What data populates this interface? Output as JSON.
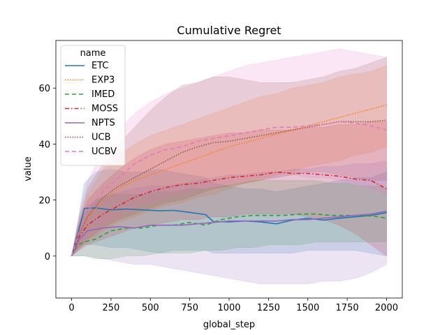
{
  "chart_data": {
    "type": "line",
    "title": "Cumulative Regret",
    "xlabel": "global_step",
    "ylabel": "value",
    "xlim": [
      -100,
      2100
    ],
    "ylim": [
      -15,
      77
    ],
    "xticks": [
      0,
      250,
      500,
      750,
      1000,
      1250,
      1500,
      1750,
      2000
    ],
    "yticks": [
      0,
      20,
      40,
      60
    ],
    "grid": false,
    "legend": {
      "title": "name",
      "placement": "top-left"
    },
    "series": [
      {
        "name": "ETC",
        "color": "#1f77b4",
        "dash": "solid",
        "x": [
          0,
          40,
          80,
          150,
          250,
          350,
          450,
          550,
          650,
          750,
          850,
          900,
          1000,
          1100,
          1200,
          1300,
          1400,
          1500,
          1600,
          1700,
          1800,
          1900,
          2000
        ],
        "y": [
          0,
          8,
          17,
          17.2,
          16.5,
          16.8,
          16.5,
          16.2,
          16.3,
          15.6,
          14.8,
          12.3,
          12.2,
          12.5,
          12.2,
          11.5,
          12.8,
          13.5,
          12.8,
          13.5,
          14,
          14.5,
          15.5
        ],
        "lower": [
          0,
          2,
          4,
          4,
          3,
          3,
          2,
          1,
          2,
          2,
          2,
          1,
          1,
          1,
          1,
          1,
          1,
          2,
          2,
          2,
          2,
          1,
          0
        ],
        "upper": [
          0,
          12,
          26,
          30,
          31,
          30,
          30,
          31,
          30,
          29,
          28,
          26,
          25,
          24,
          24,
          23,
          24,
          25,
          26,
          27,
          28,
          28,
          30
        ]
      },
      {
        "name": "EXP3",
        "color": "#ff7f0e",
        "dash": "dotted",
        "x": [
          0,
          50,
          100,
          200,
          300,
          400,
          500,
          600,
          700,
          800,
          900,
          1000,
          1100,
          1200,
          1300,
          1400,
          1500,
          1600,
          1700,
          1800,
          1900,
          2000
        ],
        "y": [
          0,
          8,
          13,
          20,
          24,
          27,
          29,
          31,
          33,
          35,
          37,
          39,
          40.5,
          42,
          43.5,
          45,
          46.5,
          48,
          49.5,
          51,
          52.5,
          54
        ],
        "lower": [
          0,
          3,
          5,
          9,
          12,
          14,
          16,
          18,
          19,
          21,
          22,
          24,
          26,
          27,
          29,
          30,
          32,
          33,
          34,
          36,
          37,
          39
        ],
        "upper": [
          0,
          14,
          22,
          31,
          36,
          40,
          43,
          45,
          47,
          49,
          51,
          53,
          55,
          57,
          58,
          60,
          61,
          62,
          64,
          65,
          66,
          68
        ]
      },
      {
        "name": "IMED",
        "color": "#2ca02c",
        "dash": "dashed",
        "x": [
          0,
          40,
          80,
          150,
          250,
          350,
          450,
          550,
          650,
          750,
          850,
          950,
          1050,
          1150,
          1250,
          1350,
          1450,
          1550,
          1650,
          1750,
          1850,
          1950,
          2000
        ],
        "y": [
          0,
          4,
          5,
          6,
          9,
          10,
          10,
          11,
          11,
          12,
          11,
          13,
          14,
          14.5,
          14.5,
          14.5,
          15,
          15,
          14.5,
          14.5,
          14.5,
          14,
          13.5
        ],
        "lower": [
          0,
          0,
          0,
          -1,
          -1,
          0,
          0,
          1,
          1,
          1,
          2,
          2,
          3,
          3,
          4,
          4,
          4,
          5,
          5,
          5,
          5,
          5,
          5
        ],
        "upper": [
          0,
          10,
          15,
          20,
          22,
          22,
          22,
          23,
          23,
          24,
          24,
          25,
          26,
          27,
          27,
          27,
          27,
          27,
          26,
          26,
          25,
          25,
          24
        ]
      },
      {
        "name": "MOSS",
        "color": "#d62728",
        "dash": "dashdot",
        "x": [
          0,
          50,
          100,
          200,
          300,
          400,
          500,
          600,
          700,
          800,
          900,
          1000,
          1100,
          1200,
          1300,
          1400,
          1500,
          1600,
          1700,
          1800,
          1900,
          2000
        ],
        "y": [
          0,
          7,
          11,
          15,
          18,
          21,
          23,
          24.5,
          25.5,
          26,
          27,
          28,
          28.5,
          29,
          30,
          29.5,
          29.5,
          29,
          28.5,
          27.5,
          27,
          24
        ],
        "lower": [
          0,
          2,
          4,
          6,
          8,
          10,
          11,
          12,
          13,
          13,
          14,
          14,
          15,
          15,
          15,
          15,
          14,
          13,
          11,
          8,
          4,
          0
        ],
        "upper": [
          0,
          12,
          20,
          26,
          31,
          35,
          38,
          40,
          41,
          42,
          43,
          44,
          44,
          45,
          45,
          45,
          46,
          46,
          47,
          47,
          48,
          48
        ]
      },
      {
        "name": "NPTS",
        "color": "#9467bd",
        "dash": "solid",
        "x": [
          0,
          50,
          100,
          200,
          300,
          400,
          500,
          600,
          700,
          800,
          900,
          1000,
          1100,
          1200,
          1300,
          1400,
          1500,
          1600,
          1700,
          1800,
          1900,
          2000
        ],
        "y": [
          0,
          6,
          9,
          10,
          10.5,
          10,
          11,
          11,
          11,
          11.5,
          12,
          12.5,
          12.5,
          12.5,
          12.5,
          13,
          13,
          13.5,
          14,
          14.5,
          15,
          16
        ],
        "lower": [
          0,
          0,
          0,
          -1,
          -2,
          -3,
          -3,
          -4,
          -5,
          -6,
          -7,
          -8,
          -9,
          -10,
          -10,
          -10,
          -10,
          -9,
          -9,
          -8,
          -6,
          -3
        ],
        "upper": [
          0,
          12,
          18,
          21,
          23,
          24,
          25,
          25,
          26,
          27,
          28,
          29,
          29,
          30,
          30,
          31,
          31,
          32,
          32,
          33,
          33,
          34
        ]
      },
      {
        "name": "UCB",
        "color": "#8c564b",
        "dash": "dotted",
        "x": [
          0,
          50,
          100,
          200,
          300,
          400,
          500,
          600,
          700,
          800,
          900,
          1000,
          1100,
          1200,
          1300,
          1400,
          1500,
          1600,
          1700,
          1800,
          1900,
          2000
        ],
        "y": [
          0,
          8,
          14,
          21,
          25,
          28,
          31,
          34,
          37,
          39,
          40.5,
          41,
          42,
          43,
          44,
          45,
          46,
          47,
          48,
          48,
          48,
          48.5
        ],
        "lower": [
          0,
          3,
          6,
          10,
          13,
          15,
          17,
          19,
          20,
          22,
          24,
          25,
          26,
          27,
          28,
          29,
          30,
          30,
          29,
          28,
          27,
          27
        ],
        "upper": [
          0,
          14,
          24,
          33,
          40,
          46,
          52,
          57,
          61,
          62,
          64,
          64,
          63,
          62,
          62,
          62,
          63,
          64,
          66,
          67,
          69,
          71
        ]
      },
      {
        "name": "UCBV",
        "color": "#e377c2",
        "dash": "dashed",
        "x": [
          0,
          50,
          100,
          200,
          300,
          400,
          500,
          600,
          700,
          800,
          900,
          1000,
          1100,
          1200,
          1300,
          1400,
          1500,
          1600,
          1700,
          1800,
          1900,
          2000
        ],
        "y": [
          0,
          9,
          16,
          23,
          28,
          33,
          36,
          38,
          39,
          41,
          42,
          43,
          44,
          45,
          46,
          46,
          46.5,
          47,
          48,
          47.5,
          46.5,
          45
        ],
        "lower": [
          0,
          3,
          7,
          11,
          14,
          17,
          19,
          21,
          22,
          24,
          25,
          26,
          27,
          28,
          28,
          29,
          28,
          28,
          27,
          26,
          24,
          22
        ],
        "upper": [
          0,
          16,
          27,
          37,
          45,
          51,
          55,
          58,
          60,
          62,
          64,
          66,
          68,
          69,
          70,
          71,
          72,
          73,
          74,
          73,
          72,
          71
        ]
      }
    ]
  }
}
